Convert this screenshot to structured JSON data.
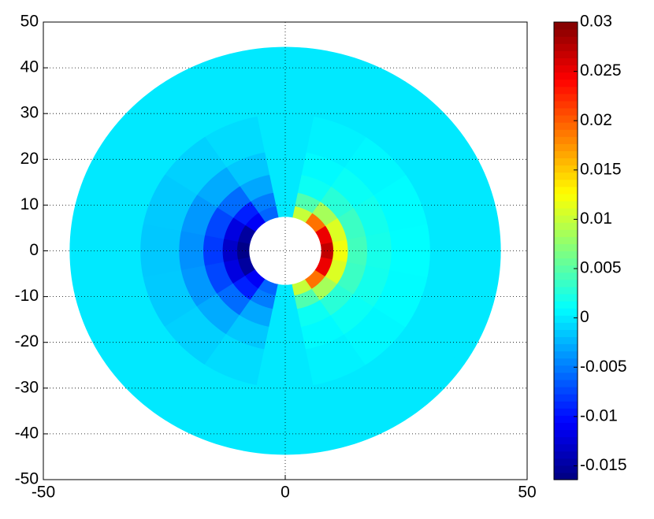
{
  "chart_data": {
    "type": "polar_contour",
    "colormap": "jet",
    "xlim": [
      -50,
      50
    ],
    "ylim": [
      -50,
      50
    ],
    "xticks": [
      -50,
      0,
      50
    ],
    "yticks": [
      -50,
      -40,
      -30,
      -20,
      -10,
      0,
      10,
      20,
      30,
      40,
      50
    ],
    "grid": true,
    "r_edges": [
      7.5,
      10,
      13,
      17,
      22,
      30,
      44.5
    ],
    "theta_edges": [
      -11.25,
      11.25,
      33.75,
      56.25,
      78.75,
      101.25,
      123.75,
      146.25,
      168.75,
      191.25,
      213.75,
      236.25,
      258.75,
      281.25,
      303.75,
      326.25,
      348.75
    ],
    "values": [
      [
        0.027,
        0.025,
        0.019,
        0.01,
        0,
        -0.006,
        -0.011,
        -0.015,
        -0.016,
        -0.015,
        -0.011,
        -0.006,
        0,
        0.01,
        0.019,
        0.025
      ],
      [
        0.012,
        0.011,
        0.0085,
        0.0046,
        0,
        -0.0049,
        -0.0092,
        -0.012,
        -0.013,
        -0.012,
        -0.0092,
        -0.0049,
        0,
        0.0046,
        0.0085,
        0.011
      ],
      [
        0.004,
        0.0037,
        0.0028,
        0.0015,
        0,
        -0.003,
        -0.0057,
        -0.0074,
        -0.008,
        -0.0074,
        -0.0057,
        -0.003,
        0,
        0.0015,
        0.0028,
        0.0037
      ],
      [
        0.002,
        0.0018,
        0.0014,
        0.0008,
        0,
        -0.0015,
        -0.0028,
        -0.0037,
        -0.004,
        -0.0037,
        -0.0028,
        -0.0015,
        0,
        0.0008,
        0.0014,
        0.0018
      ],
      [
        0.001,
        0.0009,
        0.0007,
        0.0004,
        0,
        -0.0006,
        -0.0011,
        -0.0014,
        -0.0015,
        -0.0014,
        -0.0011,
        -0.0006,
        0,
        0.0004,
        0.0007,
        0.0009
      ],
      [
        0,
        0,
        0,
        0,
        0,
        0,
        0,
        0,
        0,
        0,
        0,
        0,
        0,
        0,
        0,
        0
      ]
    ],
    "colorbar": {
      "clim": [
        -0.0164,
        0.03
      ],
      "ticks": [
        -0.015,
        -0.01,
        -0.005,
        0,
        0.005,
        0.01,
        0.015,
        0.02,
        0.025,
        0.03
      ]
    }
  }
}
